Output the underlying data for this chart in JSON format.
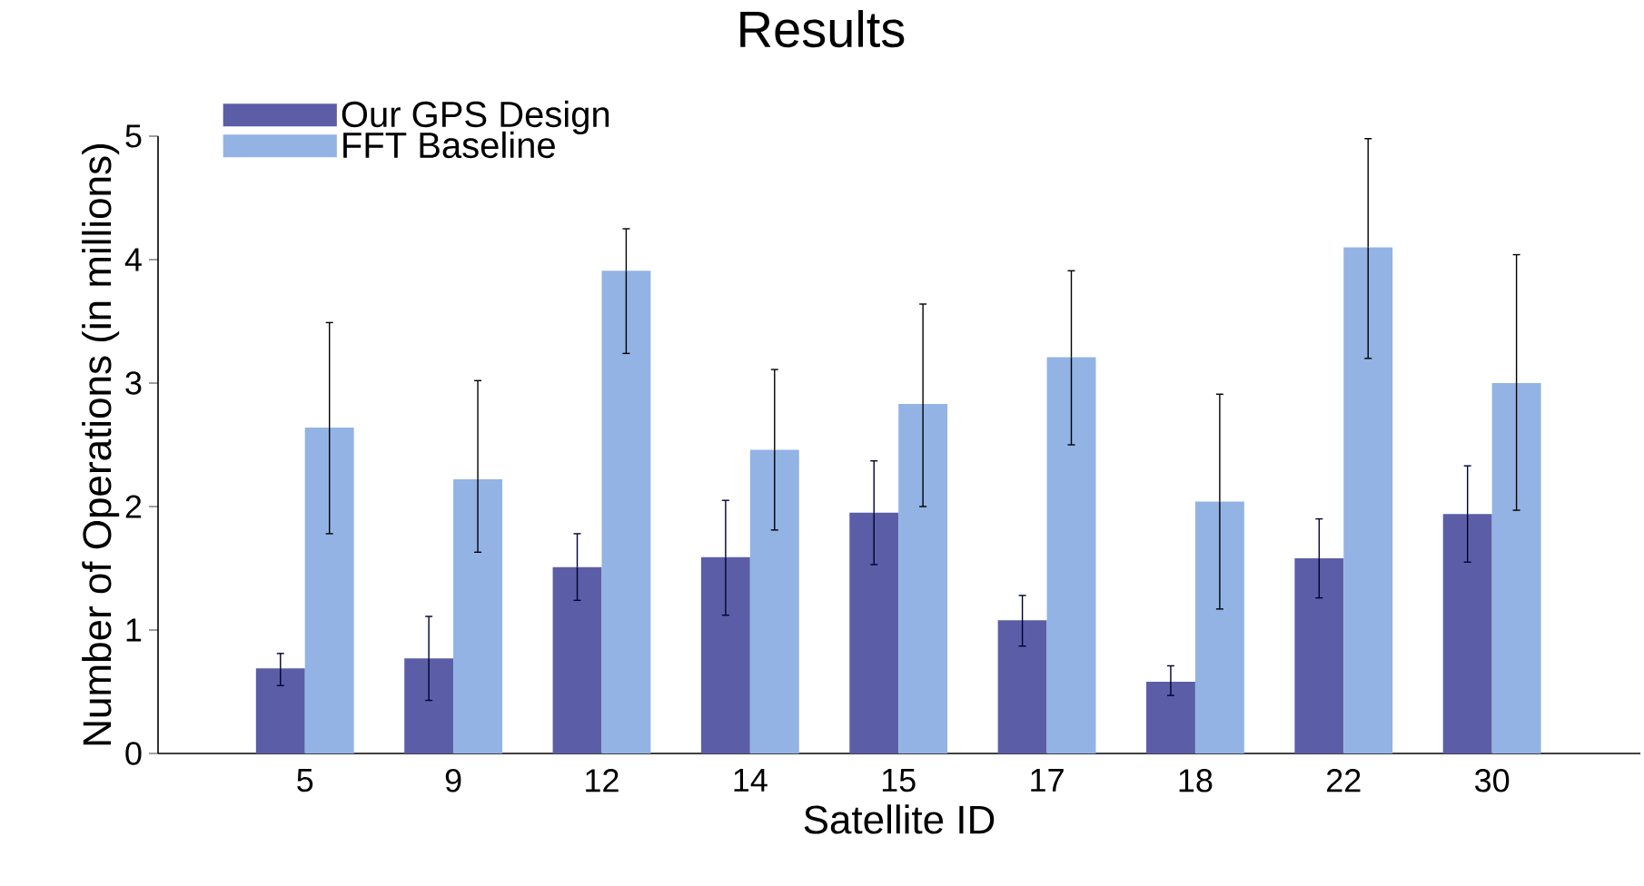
{
  "chart_data": {
    "type": "bar",
    "title": "Results",
    "xlabel": "Satellite ID",
    "ylabel": "Number of Operations (in millions)",
    "categories": [
      "5",
      "9",
      "12",
      "14",
      "15",
      "17",
      "18",
      "22",
      "30"
    ],
    "series": [
      {
        "name": "Our GPS Design",
        "color": "#5b5ea6",
        "values": [
          0.69,
          0.77,
          1.51,
          1.59,
          1.95,
          1.08,
          0.58,
          1.58,
          1.94
        ],
        "errors": [
          [
            0.55,
            0.81
          ],
          [
            0.43,
            1.11
          ],
          [
            1.24,
            1.78
          ],
          [
            1.12,
            2.05
          ],
          [
            1.53,
            2.37
          ],
          [
            0.87,
            1.28
          ],
          [
            0.47,
            0.71
          ],
          [
            1.26,
            1.9
          ],
          [
            1.55,
            2.33
          ]
        ]
      },
      {
        "name": "FFT Baseline",
        "color": "#92b3e4",
        "values": [
          2.64,
          2.22,
          3.91,
          2.46,
          2.83,
          3.21,
          2.04,
          4.1,
          3.0
        ],
        "errors": [
          [
            1.78,
            3.49
          ],
          [
            1.63,
            3.02
          ],
          [
            3.24,
            4.25
          ],
          [
            1.81,
            3.11
          ],
          [
            2.0,
            3.64
          ],
          [
            2.5,
            3.91
          ],
          [
            1.17,
            2.91
          ],
          [
            3.2,
            4.98
          ],
          [
            1.97,
            4.04
          ]
        ]
      }
    ],
    "ylim": [
      0,
      5
    ],
    "yticks": [
      0,
      1,
      2,
      3,
      4,
      5
    ],
    "legend": "top left",
    "grid": false
  }
}
